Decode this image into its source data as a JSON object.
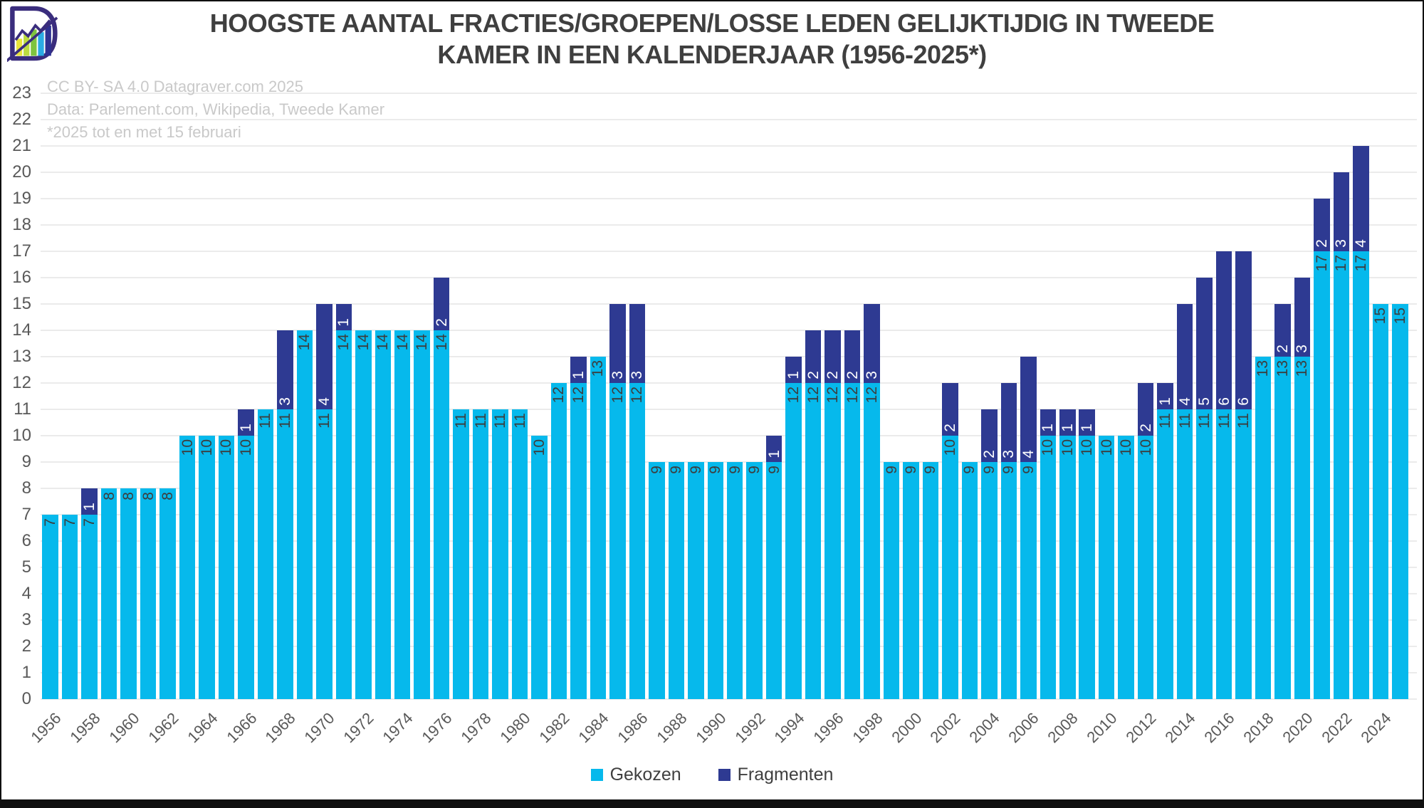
{
  "title": {
    "line1": "HOOGSTE AANTAL FRACTIES/GROEPEN/LOSSE LEDEN GELIJKTIJDIG IN TWEEDE",
    "line2": "KAMER IN EEN KALENDERJAAR (1956-2025*)"
  },
  "attribution": {
    "line1": "CC BY- SA 4.0 Datagraver.com 2025",
    "line2": "Data: Parlement.com, Wikipedia, Tweede Kamer",
    "line3": "*2025 tot en met 15 februari"
  },
  "legend": {
    "items": [
      {
        "label": "Gekozen",
        "color": "#06b9ec"
      },
      {
        "label": "Fragmenten",
        "color": "#2e3a92"
      }
    ]
  },
  "colors": {
    "gekozen": "#06b9ec",
    "fragmenten": "#2e3a92",
    "title_text": "#3f3f3f",
    "axis_text": "#595959",
    "grid": "#ebebeb",
    "attribution_text": "#c9c9c9",
    "bar_label_on_light": "#3d3d3d",
    "bar_label_on_dark": "#ffffff",
    "frame": "#101010",
    "background": "#ffffff"
  },
  "chart_data": {
    "type": "bar",
    "stacked": true,
    "title": "HOOGSTE AANTAL FRACTIES/GROEPEN/LOSSE LEDEN GELIJKTIJDIG IN TWEEDE KAMER IN EEN KALENDERJAAR (1956-2025*)",
    "xlabel": "",
    "ylabel": "",
    "ylim": [
      0,
      23
    ],
    "y_tick_step": 1,
    "grid": "horizontal",
    "legend_position": "bottom",
    "categories": [
      1956,
      1957,
      1958,
      1959,
      1960,
      1961,
      1962,
      1963,
      1964,
      1965,
      1966,
      1967,
      1968,
      1969,
      1970,
      1971,
      1972,
      1973,
      1974,
      1975,
      1976,
      1977,
      1978,
      1979,
      1980,
      1981,
      1982,
      1983,
      1984,
      1985,
      1986,
      1987,
      1988,
      1989,
      1990,
      1991,
      1992,
      1993,
      1994,
      1995,
      1996,
      1997,
      1998,
      1999,
      2000,
      2001,
      2002,
      2003,
      2004,
      2005,
      2006,
      2007,
      2008,
      2009,
      2010,
      2011,
      2012,
      2013,
      2014,
      2015,
      2016,
      2017,
      2018,
      2019,
      2020,
      2021,
      2022,
      2023,
      2024,
      2025
    ],
    "x_tick_labels": [
      "1956",
      "1958",
      "1960",
      "1962",
      "1964",
      "1966",
      "1968",
      "1970",
      "1972",
      "1974",
      "1976",
      "1978",
      "1980",
      "1982",
      "1984",
      "1986",
      "1988",
      "1990",
      "1992",
      "1994",
      "1996",
      "1998",
      "2000",
      "2002",
      "2004",
      "2006",
      "2008",
      "2010",
      "2012",
      "2014",
      "2016",
      "2018",
      "2020",
      "2022",
      "2024"
    ],
    "series": [
      {
        "name": "Gekozen",
        "color": "#06b9ec",
        "values": [
          7,
          7,
          7,
          8,
          8,
          8,
          8,
          10,
          10,
          10,
          10,
          11,
          11,
          14,
          11,
          14,
          14,
          14,
          14,
          14,
          14,
          11,
          11,
          11,
          11,
          10,
          12,
          12,
          13,
          12,
          12,
          9,
          9,
          9,
          9,
          9,
          9,
          9,
          12,
          12,
          12,
          12,
          12,
          9,
          9,
          9,
          10,
          9,
          9,
          9,
          9,
          10,
          10,
          10,
          10,
          10,
          10,
          11,
          11,
          11,
          11,
          11,
          13,
          13,
          13,
          17,
          17,
          17,
          15,
          15
        ]
      },
      {
        "name": "Fragmenten",
        "color": "#2e3a92",
        "values": [
          0,
          0,
          1,
          0,
          0,
          0,
          0,
          0,
          0,
          0,
          1,
          0,
          3,
          0,
          4,
          1,
          0,
          0,
          0,
          0,
          2,
          0,
          0,
          0,
          0,
          0,
          0,
          1,
          0,
          3,
          3,
          0,
          0,
          0,
          0,
          0,
          0,
          1,
          1,
          2,
          2,
          2,
          3,
          0,
          0,
          0,
          2,
          0,
          2,
          3,
          4,
          1,
          1,
          1,
          0,
          0,
          2,
          1,
          4,
          5,
          6,
          6,
          0,
          2,
          3,
          2,
          3,
          4,
          0,
          0
        ]
      }
    ]
  }
}
